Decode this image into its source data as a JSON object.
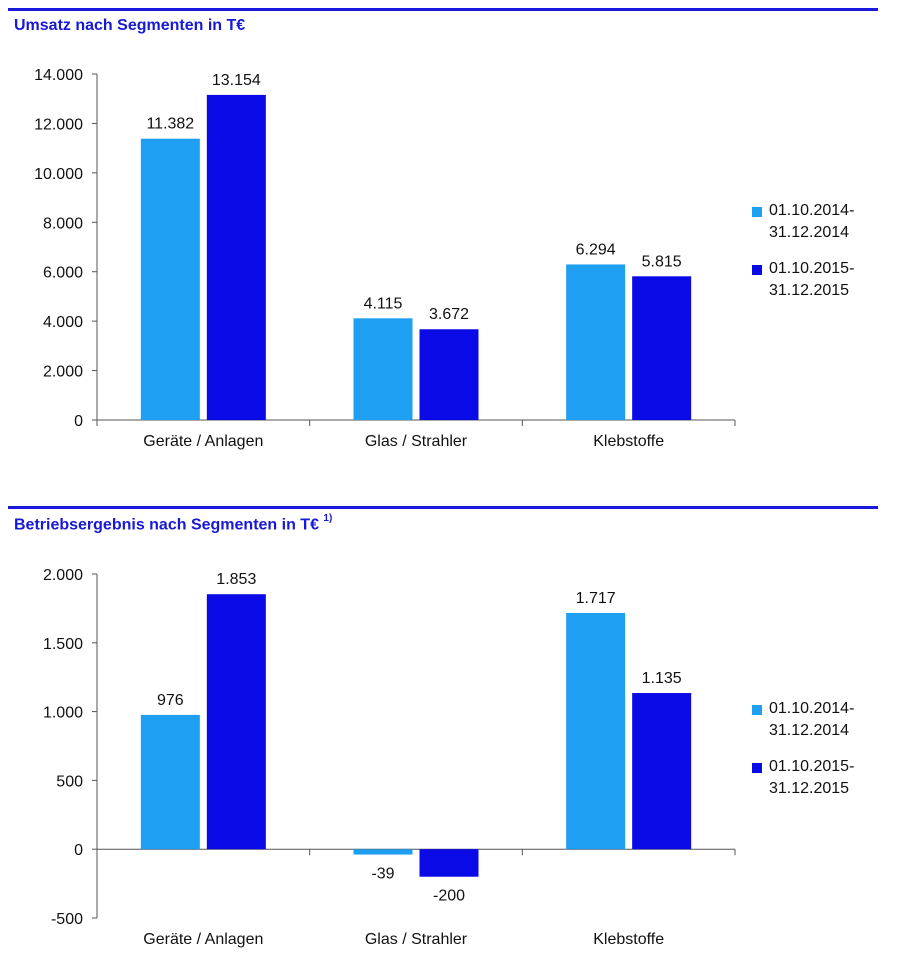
{
  "colors": {
    "series_2014": "#1e9ff2",
    "series_2015": "#0a0ae6",
    "title": "#1818d8",
    "rule": "#1a1adc"
  },
  "charts": [
    {
      "title": "Umsatz nach Segmenten in T€",
      "title_sup": "",
      "legend": [
        "01.10.2014-31.12.2014",
        "01.10.2015-31.12.2015"
      ]
    },
    {
      "title": "Betriebsergebnis nach Segmenten in T€",
      "title_sup": "1)",
      "legend": [
        "01.10.2014-31.12.2014",
        "01.10.2015-31.12.2015"
      ]
    }
  ],
  "chart_data": [
    {
      "type": "bar",
      "title": "Umsatz nach Segmenten in T€",
      "categories": [
        "Geräte / Anlagen",
        "Glas / Strahler",
        "Klebstoffe"
      ],
      "series": [
        {
          "name": "01.10.2014-31.12.2014",
          "values": [
            11382,
            4115,
            6294
          ],
          "labels": [
            "11.382",
            "4.115",
            "6.294"
          ]
        },
        {
          "name": "01.10.2015-31.12.2015",
          "values": [
            13154,
            3672,
            5815
          ],
          "labels": [
            "13.154",
            "3.672",
            "5.815"
          ]
        }
      ],
      "ylim": [
        0,
        14000
      ],
      "yticks": [
        0,
        2000,
        4000,
        6000,
        8000,
        10000,
        12000,
        14000
      ],
      "ytick_labels": [
        "0",
        "2.000",
        "4.000",
        "6.000",
        "8.000",
        "10.000",
        "12.000",
        "14.000"
      ],
      "xlabel": "",
      "ylabel": "",
      "grid": false,
      "legend_position": "right"
    },
    {
      "type": "bar",
      "title": "Betriebsergebnis nach Segmenten in T€",
      "categories": [
        "Geräte / Anlagen",
        "Glas / Strahler",
        "Klebstoffe"
      ],
      "series": [
        {
          "name": "01.10.2014-31.12.2014",
          "values": [
            976,
            -39,
            1717
          ],
          "labels": [
            "976",
            "-39",
            "1.717"
          ]
        },
        {
          "name": "01.10.2015-31.12.2015",
          "values": [
            1853,
            -200,
            1135
          ],
          "labels": [
            "1.853",
            "-200",
            "1.135"
          ]
        }
      ],
      "ylim": [
        -500,
        2000
      ],
      "yticks": [
        -500,
        0,
        500,
        1000,
        1500,
        2000
      ],
      "ytick_labels": [
        "-500",
        "0",
        "500",
        "1.000",
        "1.500",
        "2.000"
      ],
      "xlabel": "",
      "ylabel": "",
      "grid": false,
      "legend_position": "right"
    }
  ]
}
